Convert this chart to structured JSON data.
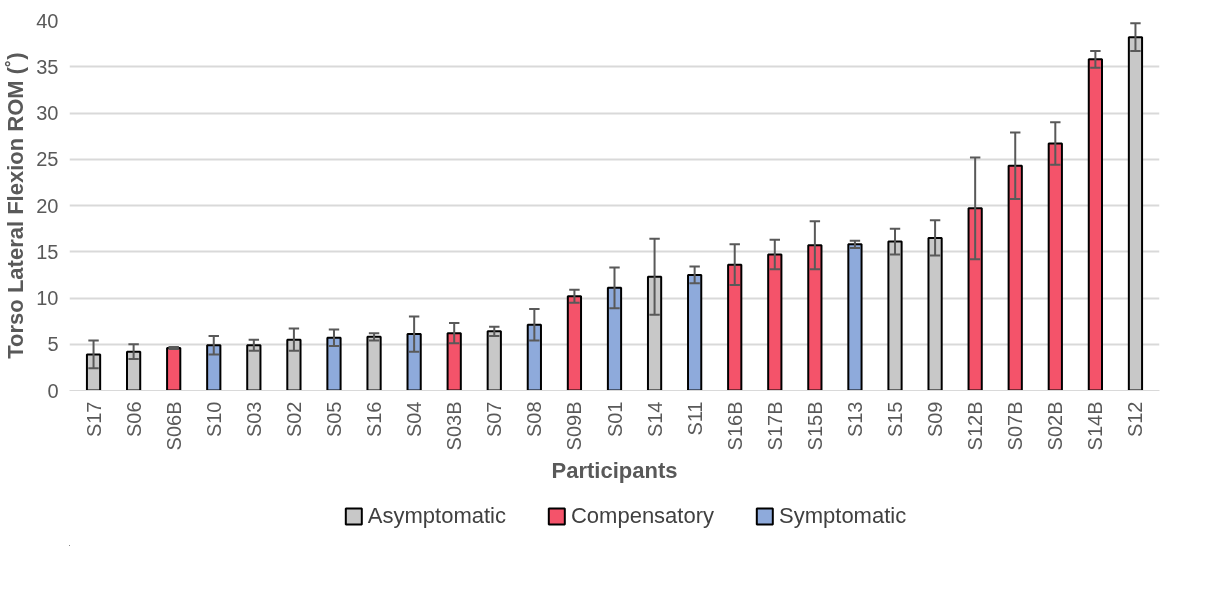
{
  "chart_data": {
    "type": "bar",
    "xlabel": "Participants",
    "ylabel": "Torso Lateral Flexion ROM (˚)",
    "categories": [
      "S17",
      "S06",
      "S06B",
      "S10",
      "S03",
      "S02",
      "S05",
      "S16",
      "S04",
      "S03B",
      "S07",
      "S08",
      "S09B",
      "S01",
      "S14",
      "S11",
      "S16B",
      "S17B",
      "S15B",
      "S13",
      "S15",
      "S09",
      "S12B",
      "S07B",
      "S02B",
      "S14B",
      "S12"
    ],
    "series": [
      {
        "name": "Asymptomatic",
        "color": "#c8c8c8",
        "values": [
          3.9,
          4.2,
          null,
          null,
          4.9,
          5.5,
          null,
          5.8,
          null,
          null,
          6.4,
          null,
          null,
          null,
          12.3,
          null,
          null,
          null,
          null,
          null,
          16.1,
          16.5,
          null,
          null,
          null,
          null,
          38.2
        ],
        "errors": [
          1.5,
          0.8,
          null,
          null,
          0.6,
          1.2,
          null,
          0.4,
          null,
          null,
          0.5,
          null,
          null,
          null,
          4.1,
          null,
          null,
          null,
          null,
          null,
          1.4,
          1.9,
          null,
          null,
          null,
          null,
          1.5
        ]
      },
      {
        "name": "Compensatory",
        "color": "#f4536a",
        "values": [
          null,
          null,
          4.6,
          null,
          null,
          null,
          null,
          null,
          null,
          6.2,
          null,
          null,
          10.2,
          null,
          null,
          null,
          13.6,
          14.7,
          15.7,
          null,
          null,
          null,
          19.7,
          24.3,
          26.7,
          35.8,
          null
        ],
        "errors": [
          null,
          null,
          0.1,
          null,
          null,
          null,
          null,
          null,
          null,
          1.1,
          null,
          null,
          0.7,
          null,
          null,
          null,
          2.2,
          1.6,
          2.6,
          null,
          null,
          null,
          5.5,
          3.6,
          2.3,
          0.9,
          null
        ]
      },
      {
        "name": "Symptomatic",
        "color": "#8eaadb",
        "values": [
          null,
          null,
          null,
          4.9,
          null,
          null,
          5.7,
          null,
          6.1,
          null,
          null,
          7.1,
          null,
          11.1,
          null,
          12.5,
          null,
          null,
          null,
          15.8,
          null,
          null,
          null,
          null,
          null,
          null,
          null
        ],
        "errors": [
          null,
          null,
          null,
          1.0,
          null,
          null,
          0.9,
          null,
          1.9,
          null,
          null,
          1.7,
          null,
          2.2,
          null,
          0.9,
          null,
          null,
          null,
          0.4,
          null,
          null,
          null,
          null,
          null,
          null,
          null
        ]
      }
    ],
    "ylim": [
      0,
      40
    ],
    "yticks": [
      0,
      5,
      10,
      15,
      20,
      25,
      30,
      35,
      40
    ],
    "grid": "y",
    "legend": "bottom"
  }
}
